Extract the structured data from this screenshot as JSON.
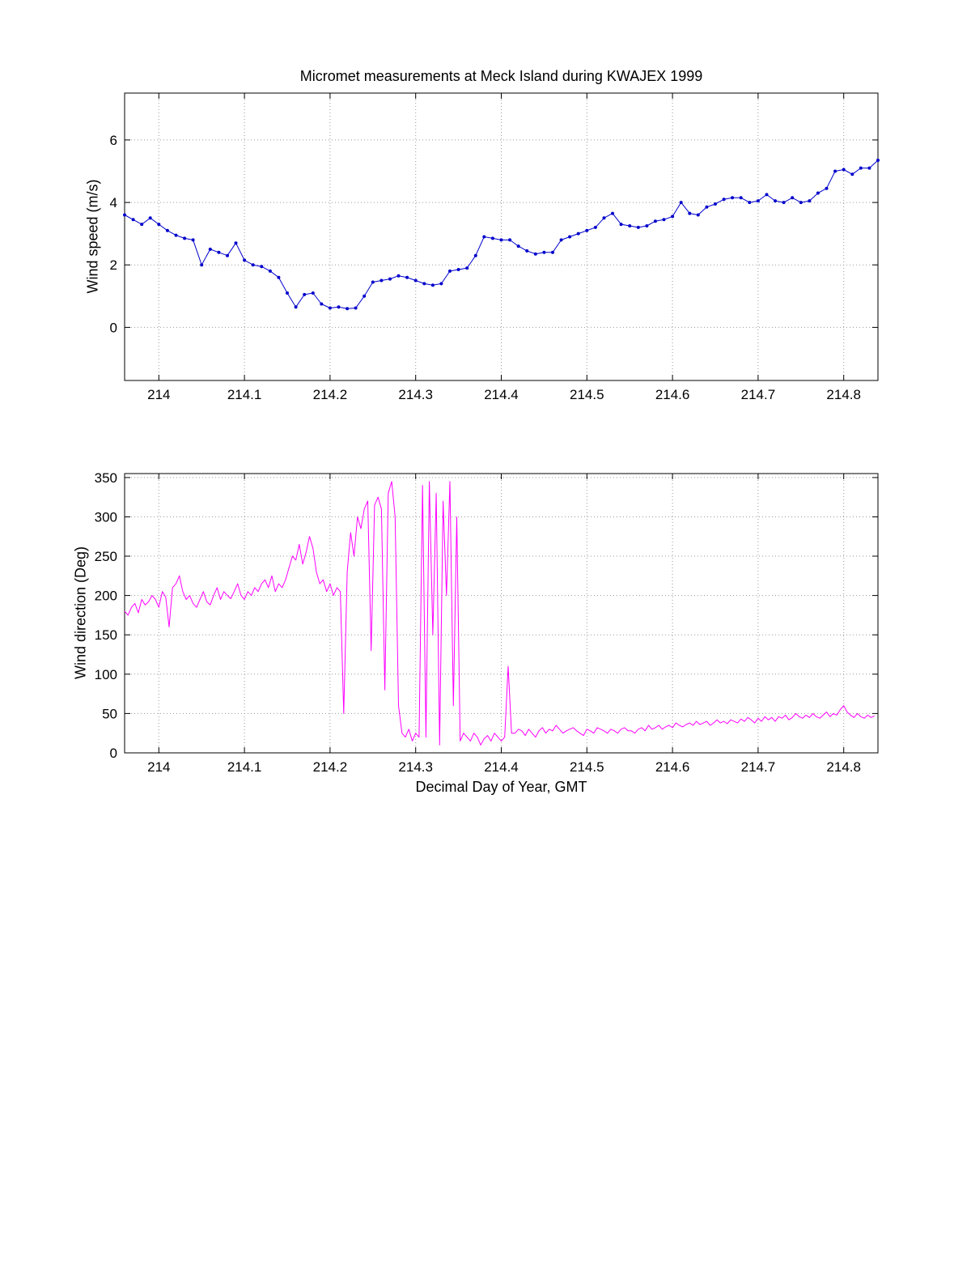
{
  "figure": {
    "background": "#ffffff"
  },
  "chart_data": [
    {
      "type": "line",
      "name": "wind-speed",
      "title": "Micromet measurements at Meck Island during KWAJEX 1999",
      "xlabel": "",
      "ylabel": "Wind speed (m/s)",
      "xlim": [
        213.96,
        214.84
      ],
      "ylim": [
        -1.7,
        7.5
      ],
      "grid": true,
      "legend": "none",
      "xticks": [
        214,
        214.1,
        214.2,
        214.3,
        214.4,
        214.5,
        214.6,
        214.7,
        214.8
      ],
      "xtick_labels": [
        "214",
        "214.1",
        "214.2",
        "214.3",
        "214.4",
        "214.5",
        "214.6",
        "214.7",
        "214.8"
      ],
      "yticks": [
        0,
        2,
        4,
        6
      ],
      "ytick_labels": [
        "0",
        "2",
        "4",
        "6"
      ],
      "series": [
        {
          "name": "wind-speed",
          "color": "#0000CC",
          "marker": "dot",
          "line_width": 1,
          "x_start": 213.96,
          "x_step": 0.01,
          "values": [
            3.6,
            3.45,
            3.3,
            3.5,
            3.3,
            3.1,
            2.95,
            2.85,
            2.8,
            2.0,
            2.5,
            2.4,
            2.3,
            2.7,
            2.15,
            2.0,
            1.95,
            1.8,
            1.6,
            1.1,
            0.65,
            1.05,
            1.1,
            0.75,
            0.62,
            0.65,
            0.6,
            0.62,
            1.0,
            1.45,
            1.5,
            1.55,
            1.65,
            1.6,
            1.5,
            1.4,
            1.35,
            1.4,
            1.8,
            1.85,
            1.9,
            2.3,
            2.9,
            2.85,
            2.8,
            2.8,
            2.6,
            2.45,
            2.35,
            2.4,
            2.4,
            2.8,
            2.9,
            3.0,
            3.1,
            3.2,
            3.5,
            3.65,
            3.3,
            3.25,
            3.2,
            3.25,
            3.4,
            3.45,
            3.55,
            4.0,
            3.65,
            3.6,
            3.85,
            3.95,
            4.1,
            4.15,
            4.15,
            4.0,
            4.05,
            4.25,
            4.05,
            4.0,
            4.15,
            4.0,
            4.05,
            4.3,
            4.45,
            5.0,
            5.05,
            4.9,
            5.1,
            5.1,
            5.35
          ]
        }
      ]
    },
    {
      "type": "line",
      "name": "wind-direction",
      "title": "",
      "xlabel": "Decimal Day of Year, GMT",
      "ylabel": "Wind direction (Deg)",
      "xlim": [
        213.96,
        214.84
      ],
      "ylim": [
        0,
        355
      ],
      "grid": true,
      "legend": "none",
      "xticks": [
        214,
        214.1,
        214.2,
        214.3,
        214.4,
        214.5,
        214.6,
        214.7,
        214.8
      ],
      "xtick_labels": [
        "214",
        "214.1",
        "214.2",
        "214.3",
        "214.4",
        "214.5",
        "214.6",
        "214.7",
        "214.8"
      ],
      "yticks": [
        0,
        50,
        100,
        150,
        200,
        250,
        300,
        350
      ],
      "ytick_labels": [
        "0",
        "50",
        "100",
        "150",
        "200",
        "250",
        "300",
        "350"
      ],
      "series": [
        {
          "name": "wind-direction",
          "color": "#FF00FF",
          "marker": "none",
          "line_width": 1,
          "x_start": 213.96,
          "x_step": 0.004,
          "values": [
            180,
            175,
            185,
            190,
            178,
            195,
            188,
            192,
            200,
            195,
            185,
            205,
            198,
            160,
            210,
            215,
            225,
            205,
            195,
            200,
            190,
            185,
            195,
            205,
            192,
            188,
            200,
            210,
            195,
            205,
            200,
            196,
            205,
            215,
            200,
            195,
            205,
            200,
            210,
            205,
            215,
            220,
            210,
            225,
            205,
            215,
            210,
            220,
            235,
            250,
            245,
            265,
            240,
            255,
            275,
            260,
            230,
            215,
            220,
            205,
            215,
            200,
            210,
            205,
            50,
            230,
            280,
            250,
            300,
            285,
            310,
            320,
            130,
            315,
            325,
            310,
            80,
            330,
            345,
            300,
            60,
            25,
            20,
            30,
            15,
            25,
            20,
            340,
            20,
            345,
            150,
            330,
            10,
            320,
            200,
            345,
            60,
            300,
            15,
            25,
            20,
            15,
            25,
            20,
            10,
            18,
            22,
            15,
            25,
            20,
            15,
            20,
            110,
            25,
            25,
            30,
            28,
            22,
            30,
            25,
            20,
            28,
            32,
            25,
            30,
            28,
            35,
            30,
            25,
            28,
            30,
            32,
            28,
            25,
            22,
            30,
            28,
            25,
            32,
            30,
            28,
            25,
            30,
            28,
            25,
            30,
            32,
            28,
            28,
            25,
            30,
            32,
            28,
            35,
            30,
            32,
            35,
            30,
            33,
            35,
            32,
            38,
            35,
            33,
            36,
            38,
            35,
            40,
            36,
            38,
            40,
            35,
            38,
            42,
            38,
            40,
            37,
            42,
            40,
            38,
            43,
            40,
            45,
            42,
            38,
            44,
            40,
            46,
            42,
            45,
            40,
            46,
            44,
            48,
            42,
            45,
            50,
            46,
            44,
            48,
            45,
            50,
            46,
            44,
            48,
            52,
            46,
            50,
            48,
            55,
            60,
            52,
            48,
            45,
            50,
            46,
            44,
            48,
            45,
            47
          ]
        }
      ]
    }
  ]
}
